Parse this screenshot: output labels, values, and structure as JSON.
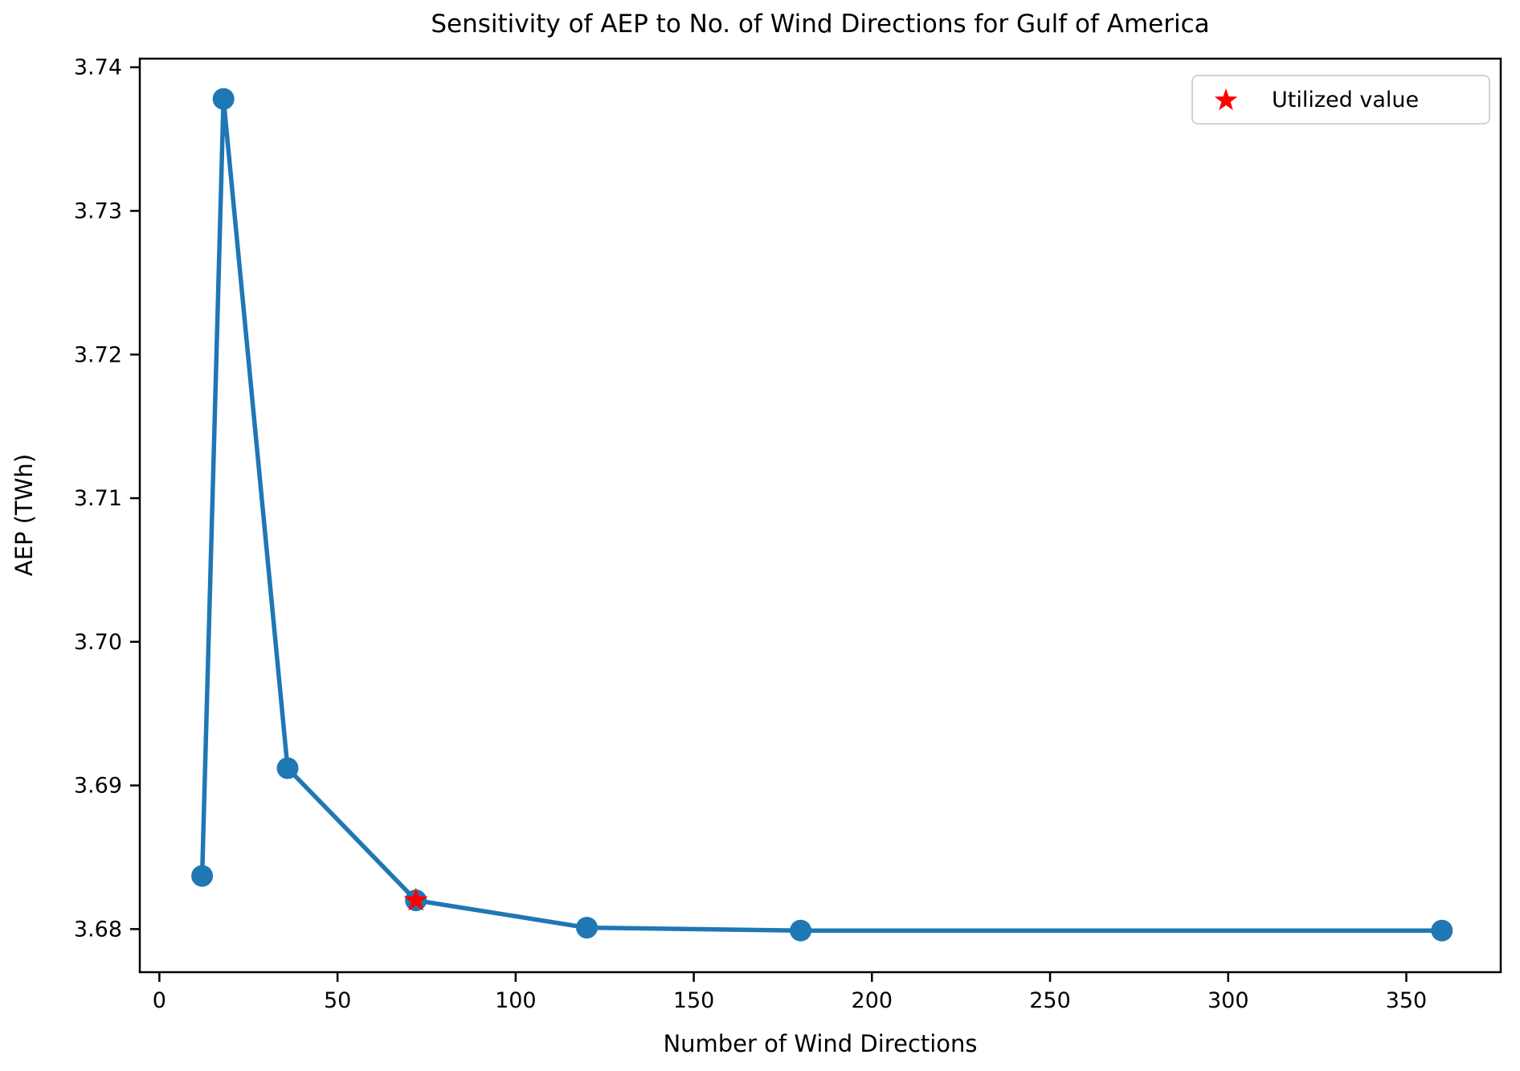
{
  "chart_data": {
    "type": "line",
    "title": "Sensitivity of AEP to No. of Wind Directions for Gulf of America",
    "xlabel": "Number of Wind Directions",
    "ylabel": "AEP (TWh)",
    "x": [
      12,
      18,
      36,
      72,
      120,
      180,
      360
    ],
    "y": [
      3.6837,
      3.7378,
      3.6912,
      3.682,
      3.6801,
      3.6799,
      3.6799
    ],
    "line_color": "#1f77b4",
    "marker": "circle",
    "utilized_point": {
      "x": 72,
      "y": 3.682,
      "marker": "star",
      "color": "#ff0000"
    },
    "legend": {
      "position": "upper right",
      "entries": [
        {
          "label": "Utilized value",
          "marker": "star",
          "color": "#ff0000"
        }
      ]
    },
    "xlim": [
      -5.5,
      376.5
    ],
    "ylim": [
      3.677,
      3.7406
    ],
    "xticks": {
      "values": [
        0,
        50,
        100,
        150,
        200,
        250,
        300,
        350
      ],
      "labels": [
        "0",
        "50",
        "100",
        "150",
        "200",
        "250",
        "300",
        "350"
      ]
    },
    "yticks": {
      "values": [
        3.68,
        3.69,
        3.7,
        3.71,
        3.72,
        3.73,
        3.74
      ],
      "labels": [
        "3.68",
        "3.69",
        "3.70",
        "3.71",
        "3.72",
        "3.73",
        "3.74"
      ]
    },
    "grid": false
  }
}
